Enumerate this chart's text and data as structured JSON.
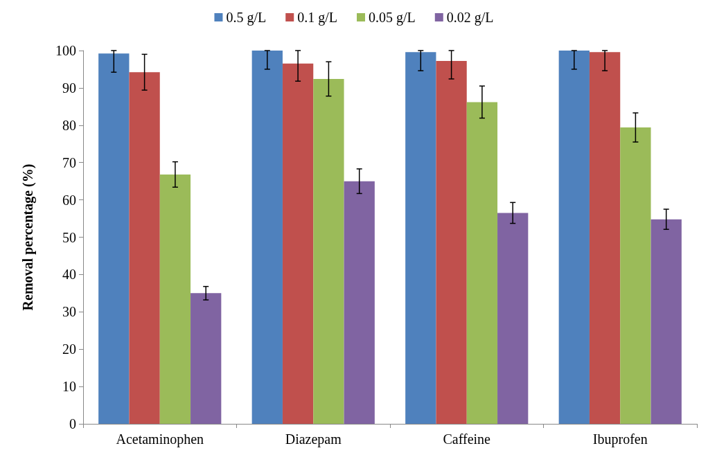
{
  "chart_data": {
    "type": "bar",
    "ylabel": "Removal percentage (%)",
    "categories": [
      "Acetaminophen",
      "Diazepam",
      "Caffeine",
      "Ibuprofen"
    ],
    "series": [
      {
        "name": "0.5 g/L",
        "color": "#4f81bd",
        "values": [
          99.2,
          100,
          99.6,
          100
        ],
        "errors": [
          [
            94.2,
            100
          ],
          [
            95,
            100
          ],
          [
            94.6,
            100
          ],
          [
            95,
            100
          ]
        ]
      },
      {
        "name": "0.1 g/L",
        "color": "#c0504d",
        "values": [
          94.2,
          96.5,
          97.2,
          99.6
        ],
        "errors": [
          4.8,
          [
            91.8,
            100
          ],
          [
            92.4,
            100
          ],
          [
            94.6,
            100
          ]
        ]
      },
      {
        "name": "0.05 g/L",
        "color": "#9bbb59",
        "values": [
          66.8,
          92.4,
          86.2,
          79.4
        ],
        "errors": [
          3.4,
          4.6,
          4.3,
          3.9
        ]
      },
      {
        "name": "0.02 g/L",
        "color": "#8064a2",
        "values": [
          35,
          65,
          56.5,
          54.8
        ],
        "errors": [
          1.8,
          3.3,
          2.8,
          2.7
        ]
      }
    ],
    "ylim": [
      0,
      100
    ],
    "yticks": [
      0,
      10,
      20,
      30,
      40,
      50,
      60,
      70,
      80,
      90,
      100
    ],
    "grid": false,
    "legend": "top"
  }
}
